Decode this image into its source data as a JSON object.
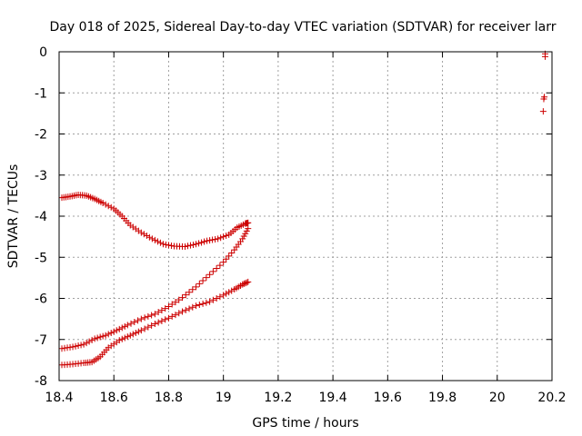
{
  "chart_data": {
    "type": "scatter",
    "title": "Day 018 of 2025, Sidereal Day-to-day VTEC variation (SDTVAR) for receiver larr",
    "xlabel": "GPS time / hours",
    "ylabel": "SDTVAR / TECUs",
    "xlim": [
      18.4,
      20.2
    ],
    "ylim": [
      -8,
      0
    ],
    "x_ticks": [
      18.4,
      18.6,
      18.8,
      19,
      19.2,
      19.4,
      19.6,
      19.8,
      20,
      20.2
    ],
    "x_tick_labels": [
      "18.4",
      "18.6",
      "18.8",
      "19",
      "19.2",
      "19.4",
      "19.6",
      "19.8",
      "20",
      "20.2"
    ],
    "y_ticks": [
      0,
      -1,
      -2,
      -3,
      -4,
      -5,
      -6,
      -7,
      -8
    ],
    "y_tick_labels": [
      "0",
      "-1",
      "-2",
      "-3",
      "-4",
      "-5",
      "-6",
      "-7",
      "-8"
    ],
    "grid": true,
    "marker": "+",
    "color": "#cc0000",
    "series": [
      {
        "name": "track-upper",
        "points": [
          [
            18.41,
            -3.55
          ],
          [
            18.44,
            -3.52
          ],
          [
            18.47,
            -3.48
          ],
          [
            18.5,
            -3.5
          ],
          [
            18.53,
            -3.58
          ],
          [
            18.56,
            -3.68
          ],
          [
            18.6,
            -3.82
          ],
          [
            18.63,
            -4.0
          ],
          [
            18.66,
            -4.22
          ],
          [
            18.7,
            -4.4
          ],
          [
            18.74,
            -4.55
          ],
          [
            18.78,
            -4.68
          ],
          [
            18.82,
            -4.73
          ],
          [
            18.86,
            -4.74
          ],
          [
            18.9,
            -4.68
          ],
          [
            18.94,
            -4.6
          ],
          [
            18.98,
            -4.55
          ],
          [
            19.02,
            -4.45
          ],
          [
            19.05,
            -4.28
          ],
          [
            19.08,
            -4.18
          ],
          [
            19.09,
            -4.16
          ]
        ]
      },
      {
        "name": "track-middle",
        "points": [
          [
            18.41,
            -7.22
          ],
          [
            18.45,
            -7.18
          ],
          [
            18.49,
            -7.12
          ],
          [
            18.53,
            -6.98
          ],
          [
            18.57,
            -6.9
          ],
          [
            18.61,
            -6.78
          ],
          [
            18.65,
            -6.65
          ],
          [
            18.7,
            -6.5
          ],
          [
            18.75,
            -6.38
          ],
          [
            18.8,
            -6.2
          ],
          [
            18.85,
            -5.98
          ],
          [
            18.9,
            -5.72
          ],
          [
            18.95,
            -5.42
          ],
          [
            19.0,
            -5.12
          ],
          [
            19.04,
            -4.82
          ],
          [
            19.07,
            -4.55
          ],
          [
            19.09,
            -4.3
          ]
        ]
      },
      {
        "name": "track-lower",
        "points": [
          [
            18.41,
            -7.62
          ],
          [
            18.45,
            -7.6
          ],
          [
            18.49,
            -7.57
          ],
          [
            18.52,
            -7.55
          ],
          [
            18.55,
            -7.42
          ],
          [
            18.58,
            -7.2
          ],
          [
            18.62,
            -7.02
          ],
          [
            18.66,
            -6.9
          ],
          [
            18.7,
            -6.78
          ],
          [
            18.75,
            -6.62
          ],
          [
            18.8,
            -6.48
          ],
          [
            18.85,
            -6.32
          ],
          [
            18.9,
            -6.18
          ],
          [
            18.95,
            -6.08
          ],
          [
            19.0,
            -5.92
          ],
          [
            19.04,
            -5.78
          ],
          [
            19.07,
            -5.66
          ],
          [
            19.09,
            -5.6
          ]
        ]
      },
      {
        "name": "isolated-points",
        "points": [
          [
            20.175,
            -0.05
          ],
          [
            20.175,
            -0.12
          ],
          [
            20.172,
            -1.1
          ],
          [
            20.17,
            -1.15
          ],
          [
            20.168,
            -1.45
          ]
        ]
      }
    ]
  }
}
